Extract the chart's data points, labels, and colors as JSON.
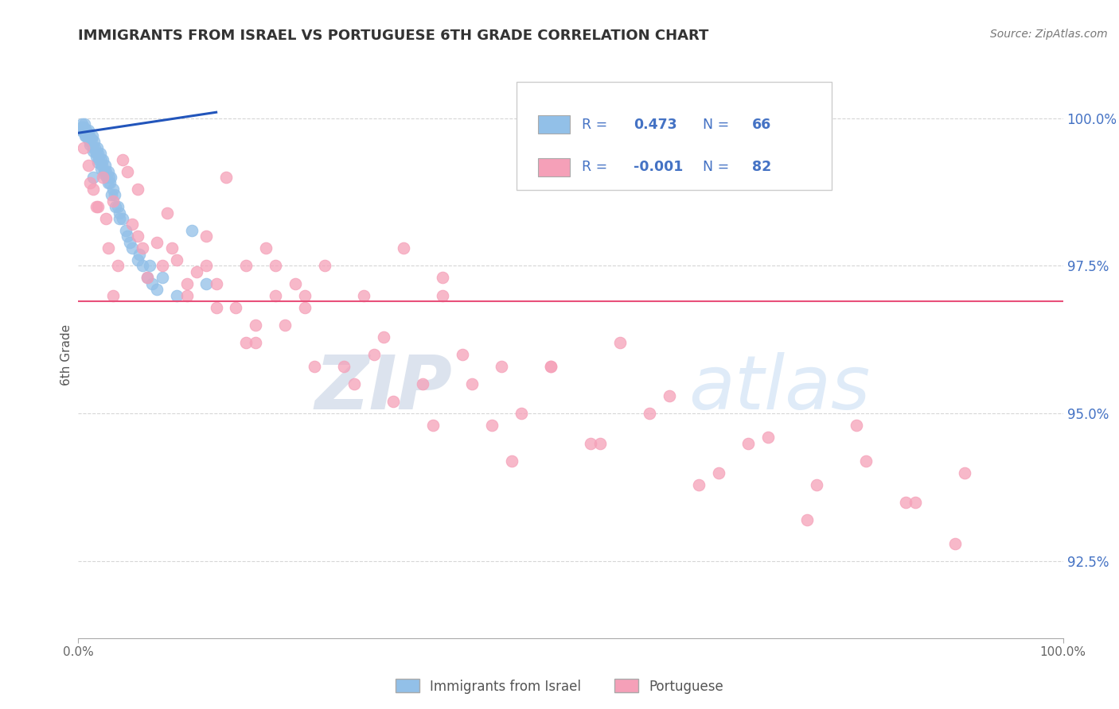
{
  "title": "IMMIGRANTS FROM ISRAEL VS PORTUGUESE 6TH GRADE CORRELATION CHART",
  "source": "Source: ZipAtlas.com",
  "ylabel": "6th Grade",
  "yticks": [
    92.5,
    95.0,
    97.5,
    100.0
  ],
  "ytick_labels": [
    "92.5%",
    "95.0%",
    "97.5%",
    "100.0%"
  ],
  "xmin": 0.0,
  "xmax": 100.0,
  "ymin": 91.2,
  "ymax": 100.8,
  "legend_label1": "Immigrants from Israel",
  "legend_label2": "Portuguese",
  "R1": "0.473",
  "N1": "66",
  "R2": "-0.001",
  "N2": "82",
  "blue_color": "#92C0E8",
  "pink_color": "#F5A0B8",
  "trend_blue": "#2255BB",
  "trend_pink": "#E8507A",
  "watermark_zip": "ZIP",
  "watermark_atlas": "atlas",
  "blue_scatter_x": [
    0.3,
    0.4,
    0.5,
    0.6,
    0.7,
    0.8,
    0.9,
    1.0,
    1.1,
    1.2,
    1.3,
    1.4,
    1.5,
    1.6,
    1.7,
    1.8,
    1.9,
    2.0,
    2.1,
    2.2,
    2.3,
    2.4,
    2.5,
    2.6,
    2.7,
    2.8,
    2.9,
    3.0,
    3.1,
    3.2,
    3.3,
    3.5,
    3.7,
    4.0,
    4.2,
    4.5,
    4.8,
    5.0,
    5.5,
    6.0,
    6.5,
    7.0,
    7.5,
    8.0,
    0.4,
    0.6,
    0.8,
    1.0,
    1.2,
    1.5,
    1.8,
    2.0,
    2.3,
    2.6,
    3.0,
    3.4,
    3.8,
    4.2,
    5.2,
    6.2,
    7.2,
    8.5,
    10.0,
    11.5,
    13.0,
    1.5
  ],
  "blue_scatter_y": [
    99.8,
    99.9,
    99.85,
    99.9,
    99.7,
    99.8,
    99.75,
    99.8,
    99.7,
    99.6,
    99.65,
    99.7,
    99.5,
    99.6,
    99.5,
    99.4,
    99.5,
    99.4,
    99.3,
    99.4,
    99.3,
    99.2,
    99.3,
    99.1,
    99.2,
    99.1,
    99.0,
    99.1,
    99.0,
    98.9,
    99.0,
    98.8,
    98.7,
    98.5,
    98.4,
    98.3,
    98.1,
    98.0,
    97.8,
    97.6,
    97.5,
    97.3,
    97.2,
    97.1,
    99.85,
    99.75,
    99.7,
    99.65,
    99.55,
    99.45,
    99.35,
    99.25,
    99.15,
    99.05,
    98.9,
    98.7,
    98.5,
    98.3,
    97.9,
    97.7,
    97.5,
    97.3,
    97.0,
    98.1,
    97.2,
    99.0
  ],
  "blue_trend_x0": 0.0,
  "blue_trend_x1": 14.0,
  "blue_trend_y0": 99.75,
  "blue_trend_y1": 100.1,
  "pink_scatter_x": [
    0.5,
    1.0,
    1.5,
    2.0,
    2.5,
    3.0,
    3.5,
    4.0,
    5.0,
    5.5,
    6.0,
    7.0,
    8.0,
    9.0,
    10.0,
    11.0,
    12.0,
    13.0,
    14.0,
    15.0,
    16.0,
    17.0,
    18.0,
    19.0,
    20.0,
    21.0,
    22.0,
    23.0,
    25.0,
    27.0,
    29.0,
    31.0,
    33.0,
    35.0,
    37.0,
    39.0,
    42.0,
    45.0,
    48.0,
    52.0,
    55.0,
    60.0,
    65.0,
    70.0,
    75.0,
    80.0,
    85.0,
    90.0,
    1.2,
    2.8,
    4.5,
    6.5,
    8.5,
    11.0,
    14.0,
    17.0,
    20.0,
    24.0,
    28.0,
    32.0,
    36.0,
    40.0,
    44.0,
    48.0,
    53.0,
    58.0,
    63.0,
    68.0,
    74.0,
    79.0,
    84.0,
    89.0,
    1.8,
    3.5,
    6.0,
    9.5,
    13.0,
    18.0,
    23.0,
    30.0,
    37.0,
    43.0
  ],
  "pink_scatter_y": [
    99.5,
    99.2,
    98.8,
    98.5,
    99.0,
    97.8,
    98.6,
    97.5,
    99.1,
    98.2,
    98.8,
    97.3,
    97.9,
    98.4,
    97.6,
    97.0,
    97.4,
    98.0,
    97.2,
    99.0,
    96.8,
    97.5,
    96.2,
    97.8,
    97.0,
    96.5,
    97.2,
    96.8,
    97.5,
    95.8,
    97.0,
    96.3,
    97.8,
    95.5,
    97.3,
    96.0,
    94.8,
    95.0,
    95.8,
    94.5,
    96.2,
    95.3,
    94.0,
    94.6,
    93.8,
    94.2,
    93.5,
    94.0,
    98.9,
    98.3,
    99.3,
    97.8,
    97.5,
    97.2,
    96.8,
    96.2,
    97.5,
    95.8,
    95.5,
    95.2,
    94.8,
    95.5,
    94.2,
    95.8,
    94.5,
    95.0,
    93.8,
    94.5,
    93.2,
    94.8,
    93.5,
    92.8,
    98.5,
    97.0,
    98.0,
    97.8,
    97.5,
    96.5,
    97.0,
    96.0,
    97.0,
    95.8
  ],
  "pink_trend_y": 96.9
}
